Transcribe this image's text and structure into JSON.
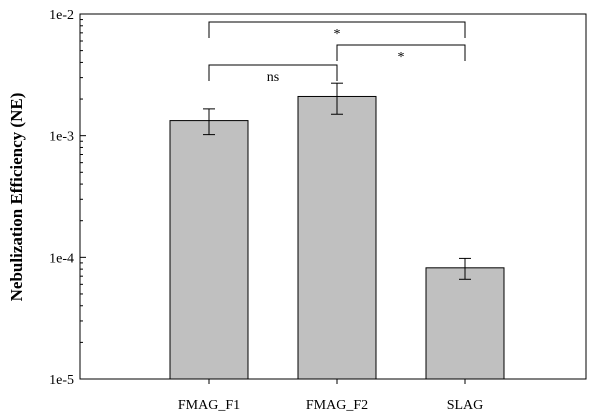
{
  "chart_data": {
    "type": "bar",
    "title": "",
    "xlabel": "",
    "ylabel": "Nebulization Efficiency (NE)",
    "yscale": "log",
    "ylim": [
      1e-05,
      0.01
    ],
    "yticks": [
      {
        "value": 0.01,
        "label": "1e-2"
      },
      {
        "value": 0.001,
        "label": "1e-3"
      },
      {
        "value": 0.0001,
        "label": "1e-4"
      },
      {
        "value": 1e-05,
        "label": "1e-5"
      }
    ],
    "categories": [
      "FMAG_F1",
      "FMAG_F2",
      "SLAG"
    ],
    "values": [
      0.00133,
      0.0021,
      8.2e-05
    ],
    "error_low": [
      0.00102,
      0.0015,
      6.6e-05
    ],
    "error_high": [
      0.00166,
      0.0027,
      9.8e-05
    ],
    "bar_color": "#c0c0c0",
    "grid": false,
    "significance": [
      {
        "from": 0,
        "to": 1,
        "label": "ns",
        "level": 1
      },
      {
        "from": 1,
        "to": 2,
        "label": "*",
        "level": 2
      },
      {
        "from": 0,
        "to": 2,
        "label": "*",
        "level": 3
      }
    ]
  }
}
